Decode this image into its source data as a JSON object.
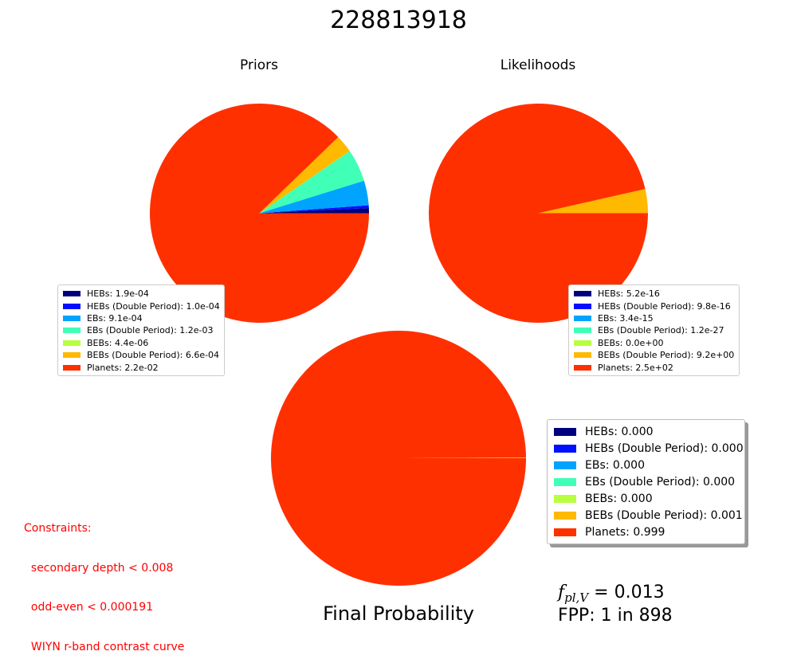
{
  "title": "228813918",
  "final_label": "Final Probability",
  "fpl": {
    "symbol": "f",
    "subscript": "pl,V",
    "equals": " = ",
    "value": "0.013"
  },
  "fpp": "FPP: 1 in 898",
  "constraints": {
    "heading": "Constraints:",
    "items": [
      "  secondary depth < 0.008",
      "  odd-even < 0.000191",
      "  WIYN r-band contrast curve"
    ]
  },
  "chart_data": [
    {
      "type": "pie",
      "title": "Priors",
      "labels": [
        "HEBs",
        "HEBs (Double Period)",
        "EBs",
        "EBs (Double Period)",
        "BEBs",
        "BEBs (Double Period)",
        "Planets"
      ],
      "colors": [
        "#00007f",
        "#0010ff",
        "#00a4ff",
        "#40ffb7",
        "#b7ff40",
        "#ffb900",
        "#ff3000"
      ],
      "values": [
        0.00019,
        0.0001,
        0.00091,
        0.0012,
        4.4e-06,
        0.00066,
        0.022
      ],
      "legend_text": [
        "HEBs: 1.9e-04",
        "HEBs (Double Period): 1.0e-04",
        "EBs: 9.1e-04",
        "EBs (Double Period): 1.2e-03",
        "BEBs: 4.4e-06",
        "BEBs (Double Period): 6.6e-04",
        "Planets: 2.2e-02"
      ],
      "legend_placement": "lower-left"
    },
    {
      "type": "pie",
      "title": "Likelihoods",
      "labels": [
        "HEBs",
        "HEBs (Double Period)",
        "EBs",
        "EBs (Double Period)",
        "BEBs",
        "BEBs (Double Period)",
        "Planets"
      ],
      "colors": [
        "#00007f",
        "#0010ff",
        "#00a4ff",
        "#40ffb7",
        "#b7ff40",
        "#ffb900",
        "#ff3000"
      ],
      "values": [
        5.2e-16,
        9.8e-16,
        3.4e-15,
        1.2e-27,
        0.0,
        9.2,
        250
      ],
      "legend_text": [
        "HEBs: 5.2e-16",
        "HEBs (Double Period): 9.8e-16",
        "EBs: 3.4e-15",
        "EBs (Double Period): 1.2e-27",
        "BEBs: 0.0e+00",
        "BEBs (Double Period): 9.2e+00",
        "Planets: 2.5e+02"
      ],
      "legend_placement": "lower-right"
    },
    {
      "type": "pie",
      "title": "",
      "labels": [
        "HEBs",
        "HEBs (Double Period)",
        "EBs",
        "EBs (Double Period)",
        "BEBs",
        "BEBs (Double Period)",
        "Planets"
      ],
      "colors": [
        "#00007f",
        "#0010ff",
        "#00a4ff",
        "#40ffb7",
        "#b7ff40",
        "#ffb900",
        "#ff3000"
      ],
      "values": [
        0.0,
        0.0,
        0.0,
        0.0,
        0.0,
        0.001,
        0.999
      ],
      "legend_text": [
        "HEBs: 0.000",
        "HEBs (Double Period): 0.000",
        "EBs: 0.000",
        "EBs (Double Period): 0.000",
        "BEBs: 0.000",
        "BEBs (Double Period): 0.001",
        "Planets: 0.999"
      ],
      "legend_placement": "right"
    }
  ]
}
